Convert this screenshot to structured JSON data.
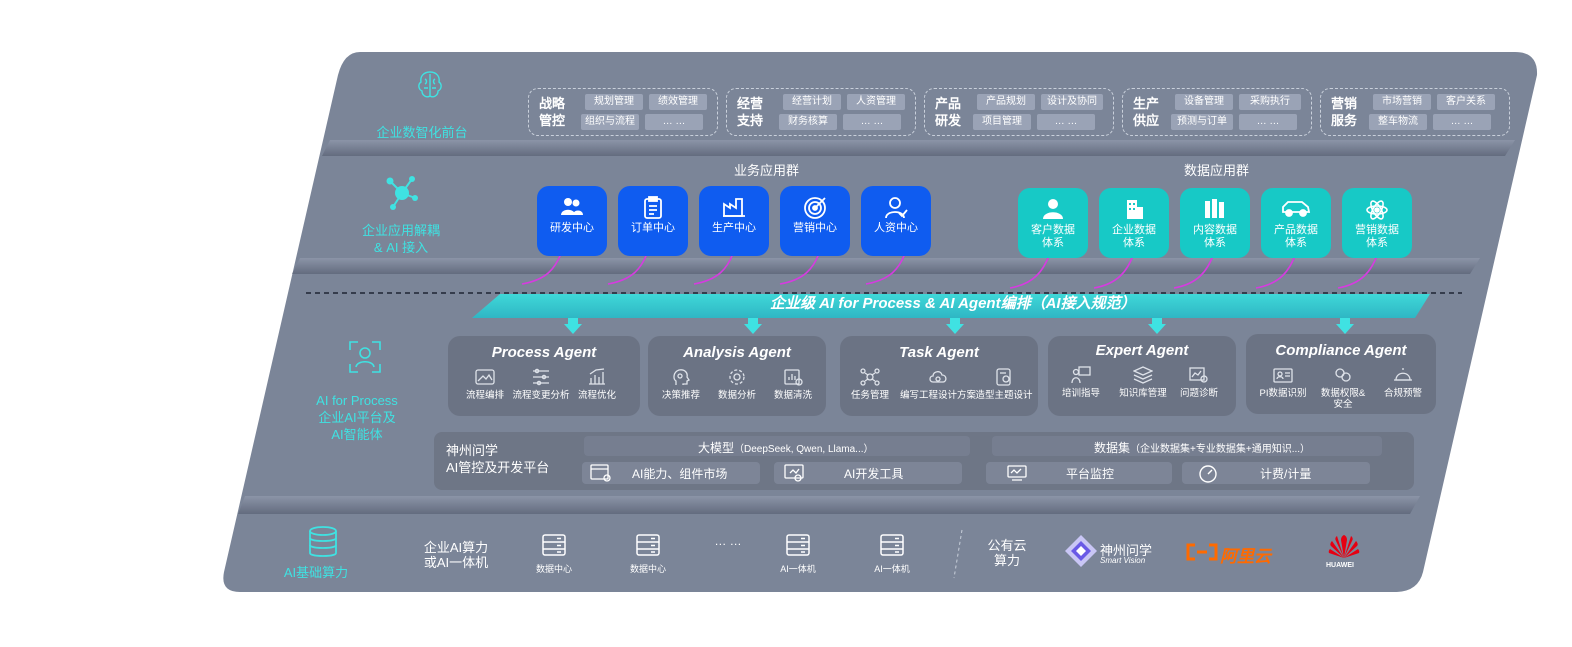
{
  "layers": {
    "frontend": "企业数智化前台",
    "apps": "企业应用解耦\n& AI 接入",
    "ai_process": "AI for Process\n企业AI平台及\nAI智能体",
    "compute": "AI基础算力"
  },
  "groups": [
    {
      "title": "战略\n管控",
      "chips": [
        "规划管理",
        "绩效管理",
        "组织与流程",
        "… …"
      ]
    },
    {
      "title": "经营\n支持",
      "chips": [
        "经营计划",
        "人资管理",
        "财务核算",
        "… …"
      ]
    },
    {
      "title": "产品\n研发",
      "chips": [
        "产品规划",
        "设计及协同",
        "项目管理",
        "… …"
      ]
    },
    {
      "title": "生产\n供应",
      "chips": [
        "设备管理",
        "采购执行",
        "预测与订单",
        "… …"
      ]
    },
    {
      "title": "营销\n服务",
      "chips": [
        "市场营销",
        "客户关系",
        "整车物流",
        "… …"
      ]
    }
  ],
  "biz_group": {
    "title": "业务应用群",
    "cards": [
      "研发中心",
      "订单中心",
      "生产中心",
      "营销中心",
      "人资中心"
    ]
  },
  "data_group": {
    "title": "数据应用群",
    "cards": [
      "客户数据\n体系",
      "企业数据\n体系",
      "内容数据\n体系",
      "产品数据\n体系",
      "营销数据\n体系"
    ]
  },
  "banner": "企业级 AI for Process & AI Agent编排（AI接入规范）",
  "agents": [
    {
      "title": "Process Agent",
      "items": [
        "流程编排",
        "流程变更分析",
        "流程优化"
      ]
    },
    {
      "title": "Analysis Agent",
      "items": [
        "决策推荐",
        "数据分析",
        "数据清洗"
      ]
    },
    {
      "title": "Task Agent",
      "items": [
        "任务管理",
        "编写工程设计方案",
        "造型主题设计"
      ]
    },
    {
      "title": "Expert Agent",
      "items": [
        "培训指导",
        "知识库管理",
        "问题诊断"
      ]
    },
    {
      "title": "Compliance Agent",
      "items": [
        "PI数据识别",
        "数据权限&\n安全",
        "合规预警"
      ]
    }
  ],
  "platform": {
    "name": "神州问学\nAI管控及开发平台",
    "model_head": "大模型",
    "model_sub": "（DeepSeek, Qwen, Llama...）",
    "dataset_head": "数据集",
    "dataset_sub": "（企业数据集+专业数据集+通用知识...）",
    "items": [
      "AI能力、组件市场",
      "AI开发工具",
      "平台监控",
      "计费/计量"
    ]
  },
  "compute": {
    "private_label": "企业AI算力\n或AI一体机",
    "servers": [
      "数据中心",
      "数据中心",
      "AI一体机",
      "AI一体机"
    ],
    "ellipsis": "… …",
    "cloud_label": "公有云\n算力",
    "vendors": {
      "smartvision": {
        "name": "神州问学",
        "sub": "Smart Vision"
      },
      "aliyun": {
        "name": "阿里云"
      },
      "huawei": {
        "name": "HUAWEI"
      }
    }
  },
  "colors": {
    "teal": "#3fe2e2",
    "blue": "#0f5cf0",
    "teal_card": "#17c9c6",
    "panel": "#7b8598",
    "magenta": "#d63be0",
    "aliyun": "#ff6a00",
    "huawei": "#e60012"
  }
}
